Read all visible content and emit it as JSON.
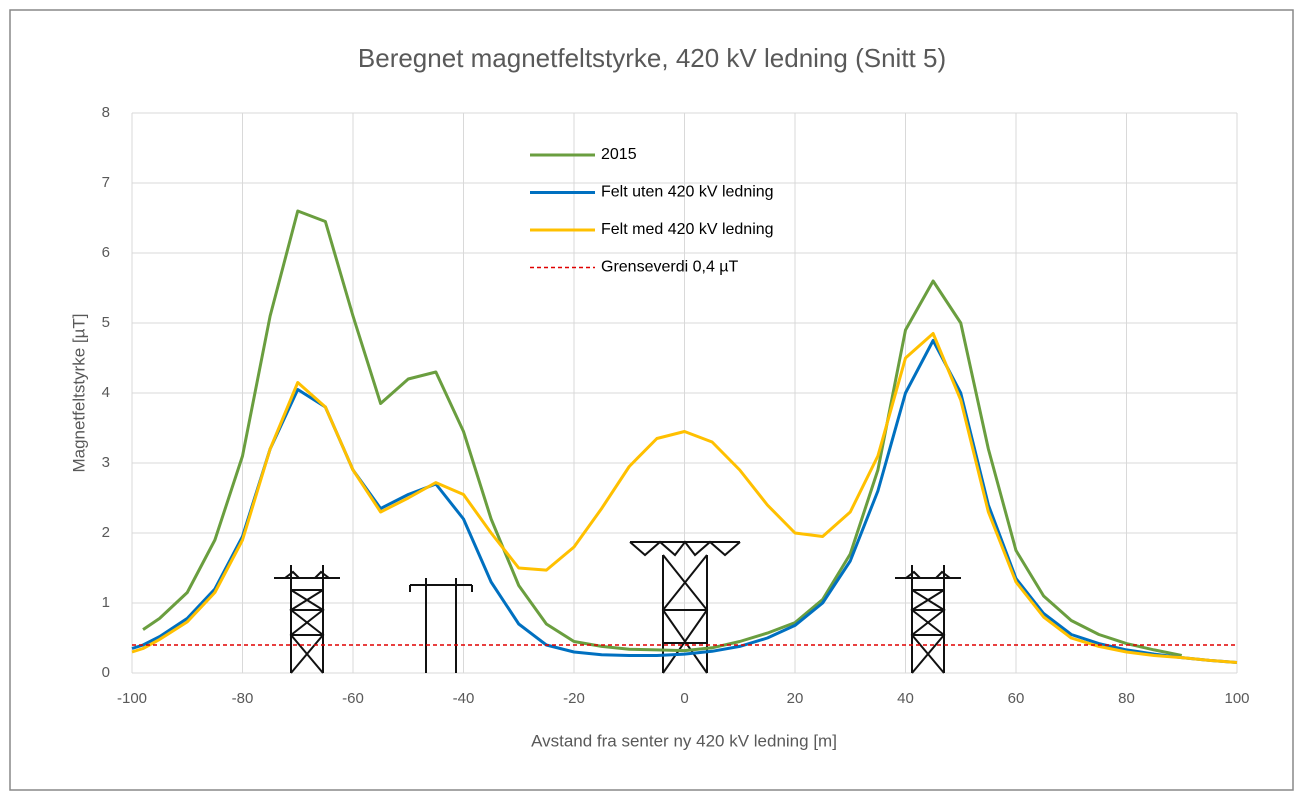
{
  "chart_data": {
    "type": "line",
    "title": "Beregnet magnetfeltstyrke, 420 kV ledning (Snitt 5)",
    "x_label": "Avstand fra senter ny 420 kV ledning [m]",
    "y_label": "Magnetfeltstyrke [µT]",
    "x": [
      -100,
      -98,
      -95,
      -90,
      -85,
      -80,
      -75,
      -70,
      -65,
      -60,
      -55,
      -50,
      -45,
      -40,
      -35,
      -30,
      -25,
      -20,
      -15,
      -10,
      -5,
      0,
      5,
      10,
      15,
      20,
      25,
      30,
      35,
      40,
      45,
      50,
      55,
      60,
      65,
      70,
      75,
      80,
      85,
      90,
      95,
      100
    ],
    "series": [
      {
        "name": "2015",
        "color": "#6a9e3f",
        "dash": false,
        "values": [
          null,
          0.62,
          0.78,
          1.15,
          1.9,
          3.1,
          5.1,
          6.6,
          6.45,
          5.1,
          3.85,
          4.2,
          4.3,
          3.45,
          2.2,
          1.25,
          0.7,
          0.45,
          0.38,
          0.34,
          0.33,
          0.32,
          0.36,
          0.45,
          0.57,
          0.72,
          1.05,
          1.7,
          2.9,
          4.9,
          5.6,
          5.0,
          3.2,
          1.75,
          1.1,
          0.75,
          0.55,
          0.42,
          0.33,
          0.25,
          null,
          null
        ]
      },
      {
        "name": "Felt uten 420 kV ledning",
        "color": "#0070c0",
        "dash": false,
        "values": [
          0.35,
          0.4,
          0.52,
          0.78,
          1.2,
          1.95,
          3.2,
          4.05,
          3.8,
          2.9,
          2.35,
          2.55,
          2.7,
          2.2,
          1.3,
          0.7,
          0.4,
          0.3,
          0.26,
          0.25,
          0.25,
          0.27,
          0.31,
          0.38,
          0.5,
          0.68,
          1.0,
          1.6,
          2.6,
          4.0,
          4.75,
          4.0,
          2.4,
          1.35,
          0.85,
          0.55,
          0.42,
          0.33,
          0.27,
          0.22,
          0.18,
          0.15
        ]
      },
      {
        "name": "Felt med 420 kV ledning",
        "color": "#ffc000",
        "dash": false,
        "values": [
          0.3,
          0.35,
          0.48,
          0.73,
          1.15,
          1.9,
          3.2,
          4.15,
          3.8,
          2.9,
          2.3,
          2.5,
          2.72,
          2.55,
          2.0,
          1.5,
          1.47,
          1.8,
          2.35,
          2.95,
          3.35,
          3.45,
          3.3,
          2.9,
          2.4,
          2.0,
          1.95,
          2.3,
          3.1,
          4.5,
          4.85,
          3.9,
          2.3,
          1.3,
          0.8,
          0.5,
          0.38,
          0.3,
          0.25,
          0.22,
          0.18,
          0.15
        ]
      },
      {
        "name": "Grenseverdi 0,4 µT",
        "color": "#e00000",
        "dash": true,
        "values": [
          0.4,
          0.4,
          0.4,
          0.4,
          0.4,
          0.4,
          0.4,
          0.4,
          0.4,
          0.4,
          0.4,
          0.4,
          0.4,
          0.4,
          0.4,
          0.4,
          0.4,
          0.4,
          0.4,
          0.4,
          0.4,
          0.4,
          0.4,
          0.4,
          0.4,
          0.4,
          0.4,
          0.4,
          0.4,
          0.4,
          0.4,
          0.4,
          0.4,
          0.4,
          0.4,
          0.4,
          0.4,
          0.4,
          0.4,
          0.4,
          0.4,
          0.4
        ]
      }
    ],
    "xlim": [
      -100,
      100
    ],
    "xticks": [
      -100,
      -80,
      -60,
      -40,
      -20,
      0,
      20,
      40,
      60,
      80,
      100
    ],
    "ylim": [
      0,
      8
    ],
    "yticks": [
      0,
      1,
      2,
      3,
      4,
      5,
      6,
      7,
      8
    ],
    "grid": true
  }
}
